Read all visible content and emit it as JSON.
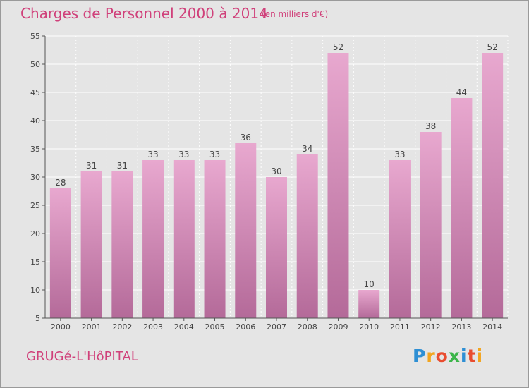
{
  "header": {
    "title": "Charges de Personnel 2000 à 2014",
    "subtitle": "(en milliers d'€)"
  },
  "footer": {
    "commune": "GRUGé-L'HôPITAL",
    "brand": "Proxiti"
  },
  "colors": {
    "bar_top": "#e8a8cf",
    "bar_bottom": "#b46a99",
    "title": "#d0407a",
    "background": "#e5e5e5"
  },
  "chart_data": {
    "type": "bar",
    "title": "Charges de Personnel 2000 à 2014",
    "subtitle": "(en milliers d'€)",
    "xlabel": "",
    "ylabel": "",
    "categories": [
      "2000",
      "2001",
      "2002",
      "2003",
      "2004",
      "2005",
      "2006",
      "2007",
      "2008",
      "2009",
      "2010",
      "2011",
      "2012",
      "2013",
      "2014"
    ],
    "values": [
      28,
      31,
      31,
      33,
      33,
      33,
      36,
      30,
      34,
      52,
      10,
      33,
      38,
      44,
      52
    ],
    "ylim": [
      5,
      55
    ],
    "yticks": [
      5,
      10,
      15,
      20,
      25,
      30,
      35,
      40,
      45,
      50,
      55
    ],
    "grid": true,
    "data_labels": true
  }
}
